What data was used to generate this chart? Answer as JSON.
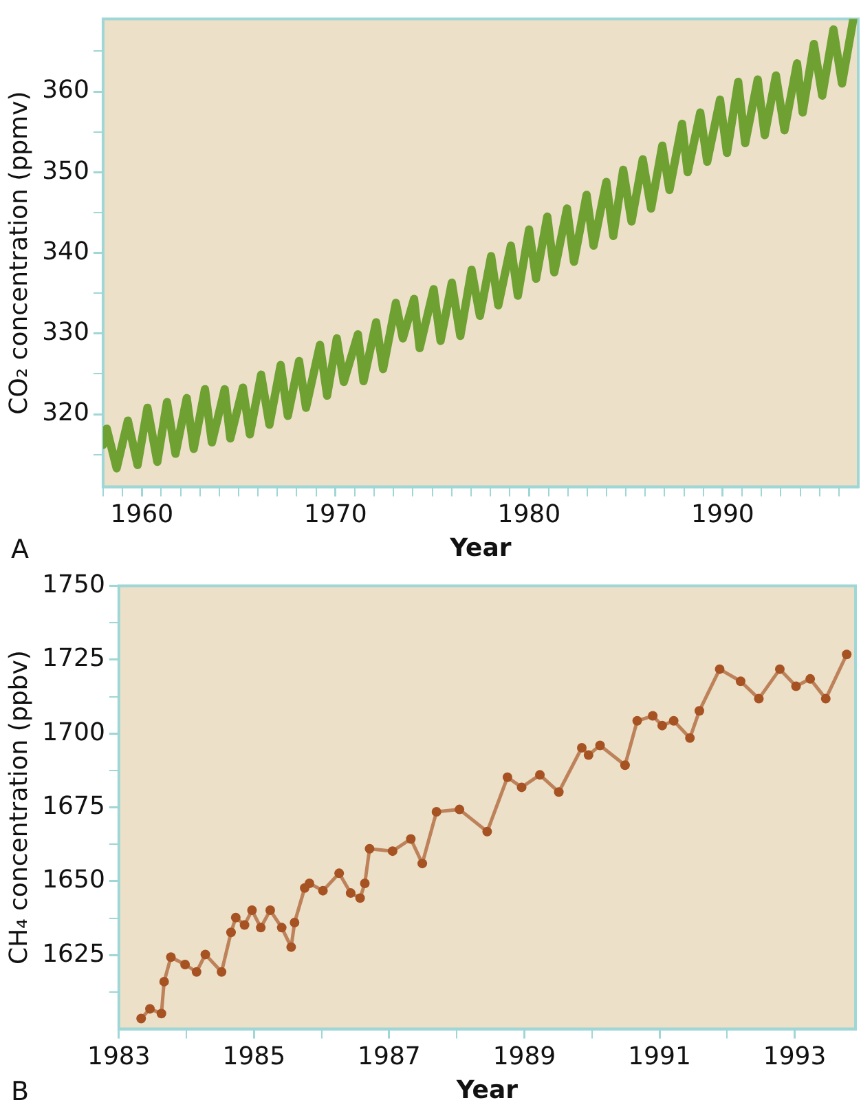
{
  "chart_data": [
    {
      "type": "line",
      "xlabel": "Year",
      "ylabel": "CO₂ concentration (ppmv)",
      "annotations": [
        "A"
      ],
      "marker": "none",
      "line_style": "solid",
      "xlim": [
        1958,
        1997
      ],
      "ylim": [
        311,
        369
      ],
      "xticks": [
        {
          "value": 1958,
          "label": null
        },
        {
          "value": 1959,
          "label": null
        },
        1960,
        {
          "value": 1961,
          "label": null
        },
        {
          "value": 1962,
          "label": null
        },
        {
          "value": 1963,
          "label": null
        },
        {
          "value": 1964,
          "label": null
        },
        {
          "value": 1965,
          "label": null
        },
        {
          "value": 1966,
          "label": null
        },
        {
          "value": 1967,
          "label": null
        },
        {
          "value": 1968,
          "label": null
        },
        {
          "value": 1969,
          "label": null
        },
        1970,
        {
          "value": 1971,
          "label": null
        },
        {
          "value": 1972,
          "label": null
        },
        {
          "value": 1973,
          "label": null
        },
        {
          "value": 1974,
          "label": null
        },
        {
          "value": 1975,
          "label": null
        },
        {
          "value": 1976,
          "label": null
        },
        {
          "value": 1977,
          "label": null
        },
        {
          "value": 1978,
          "label": null
        },
        {
          "value": 1979,
          "label": null
        },
        1980,
        {
          "value": 1981,
          "label": null
        },
        {
          "value": 1982,
          "label": null
        },
        {
          "value": 1983,
          "label": null
        },
        {
          "value": 1984,
          "label": null
        },
        {
          "value": 1985,
          "label": null
        },
        {
          "value": 1986,
          "label": null
        },
        {
          "value": 1987,
          "label": null
        },
        {
          "value": 1988,
          "label": null
        },
        {
          "value": 1989,
          "label": null
        },
        1990,
        {
          "value": 1991,
          "label": null
        },
        {
          "value": 1992,
          "label": null
        },
        {
          "value": 1993,
          "label": null
        },
        {
          "value": 1994,
          "label": null
        },
        {
          "value": 1995,
          "label": null
        },
        {
          "value": 1996,
          "label": null
        }
      ],
      "yticks": [
        {
          "value": 315,
          "label": null
        },
        320,
        {
          "value": 325,
          "label": null
        },
        330,
        {
          "value": 335,
          "label": null
        },
        340,
        {
          "value": 345,
          "label": null
        },
        350,
        {
          "value": 355,
          "label": null
        },
        360,
        {
          "value": 365,
          "label": null
        }
      ],
      "series": [
        {
          "color": "#6fa132",
          "x": [
            1958.0,
            1958.19,
            1958.7,
            1959.28,
            1959.78,
            1960.29,
            1960.8,
            1961.3,
            1961.74,
            1962.32,
            1962.68,
            1963.26,
            1963.62,
            1964.28,
            1964.57,
            1965.22,
            1965.58,
            1966.16,
            1966.59,
            1967.17,
            1967.54,
            1968.12,
            1968.48,
            1969.2,
            1969.57,
            1970.07,
            1970.43,
            1971.16,
            1971.45,
            1972.1,
            1972.46,
            1973.12,
            1973.48,
            1974.06,
            1974.35,
            1975.07,
            1975.43,
            1976.01,
            1976.45,
            1977.03,
            1977.46,
            1978.04,
            1978.41,
            1979.06,
            1979.42,
            1980.0,
            1980.36,
            1980.94,
            1981.3,
            1981.96,
            1982.32,
            1982.97,
            1983.33,
            1983.99,
            1984.35,
            1984.86,
            1985.29,
            1985.87,
            1986.3,
            1986.88,
            1987.25,
            1987.9,
            1988.19,
            1988.84,
            1989.2,
            1989.86,
            1990.22,
            1990.8,
            1991.16,
            1991.81,
            1992.17,
            1992.75,
            1993.19,
            1993.84,
            1994.13,
            1994.71,
            1995.14,
            1995.72,
            1996.16,
            1996.74
          ],
          "values": [
            316.2,
            318.2,
            313.3,
            319.2,
            313.7,
            320.8,
            314.1,
            321.5,
            315.1,
            322.0,
            315.7,
            323.1,
            316.5,
            323.1,
            317.0,
            323.3,
            317.5,
            324.9,
            318.7,
            326.1,
            319.8,
            326.6,
            320.8,
            328.6,
            322.3,
            329.4,
            324.0,
            329.9,
            324.1,
            331.4,
            325.6,
            333.8,
            329.4,
            334.3,
            328.2,
            335.5,
            329.1,
            336.3,
            329.7,
            337.9,
            332.2,
            339.6,
            333.5,
            340.9,
            334.7,
            342.9,
            336.8,
            344.5,
            337.6,
            345.5,
            338.9,
            347.2,
            340.9,
            348.8,
            342.1,
            350.3,
            343.9,
            351.6,
            345.5,
            353.3,
            347.8,
            356.0,
            350.0,
            357.4,
            351.3,
            359.0,
            352.4,
            361.2,
            353.6,
            361.5,
            354.6,
            362.0,
            355.2,
            363.5,
            357.4,
            365.9,
            359.5,
            367.7,
            361.0,
            368.9
          ]
        }
      ]
    },
    {
      "type": "line",
      "xlabel": "Year",
      "ylabel": "CH₄ concentration (ppbv)",
      "annotations": [
        "B"
      ],
      "marker": "circle",
      "line_style": "solid",
      "xlim": [
        1983,
        1993.9
      ],
      "ylim": [
        1600,
        1750
      ],
      "xticks": [
        1983,
        {
          "value": 1984,
          "label": null
        },
        1985,
        {
          "value": 1986,
          "label": null
        },
        1987,
        {
          "value": 1988,
          "label": null
        },
        1989,
        {
          "value": 1990,
          "label": null
        },
        1991,
        {
          "value": 1992,
          "label": null
        },
        1993
      ],
      "yticks": [
        {
          "value": 1612.5,
          "label": null
        },
        1625,
        {
          "value": 1637.5,
          "label": null
        },
        1650,
        {
          "value": 1662.5,
          "label": null
        },
        1675,
        {
          "value": 1687.5,
          "label": null
        },
        1700,
        {
          "value": 1712.5,
          "label": null
        },
        1725,
        {
          "value": 1737.5,
          "label": null
        },
        1750
      ],
      "series": [
        {
          "color": "#a65222",
          "x": [
            1983.33,
            1983.46,
            1983.63,
            1983.67,
            1983.77,
            1983.98,
            1984.15,
            1984.28,
            1984.52,
            1984.66,
            1984.73,
            1984.86,
            1984.97,
            1985.1,
            1985.24,
            1985.41,
            1985.55,
            1985.6,
            1985.75,
            1985.82,
            1986.02,
            1986.26,
            1986.43,
            1986.57,
            1986.64,
            1986.71,
            1987.05,
            1987.32,
            1987.49,
            1987.7,
            1988.04,
            1988.45,
            1988.75,
            1988.96,
            1989.23,
            1989.51,
            1989.85,
            1989.95,
            1990.12,
            1990.49,
            1990.67,
            1990.9,
            1991.04,
            1991.21,
            1991.45,
            1991.59,
            1991.89,
            1992.2,
            1992.47,
            1992.78,
            1993.02,
            1993.23,
            1993.46,
            1993.77
          ],
          "values": [
            1603.5,
            1606.8,
            1605.2,
            1616,
            1624.3,
            1621.8,
            1619.3,
            1625.2,
            1619.3,
            1632.7,
            1637.7,
            1635.2,
            1640.2,
            1634.3,
            1640.2,
            1634.3,
            1627.7,
            1636,
            1647.7,
            1649.3,
            1646.8,
            1652.7,
            1646,
            1644.3,
            1649.3,
            1661,
            1660.2,
            1664.3,
            1656,
            1673.5,
            1674.3,
            1666.8,
            1685.2,
            1681.8,
            1686,
            1680.2,
            1695.2,
            1692.7,
            1696,
            1689.3,
            1704.3,
            1706,
            1702.7,
            1704.3,
            1698.5,
            1707.7,
            1721.8,
            1717.7,
            1711.8,
            1721.8,
            1716,
            1718.5,
            1711.8,
            1726.8
          ]
        }
      ]
    }
  ]
}
